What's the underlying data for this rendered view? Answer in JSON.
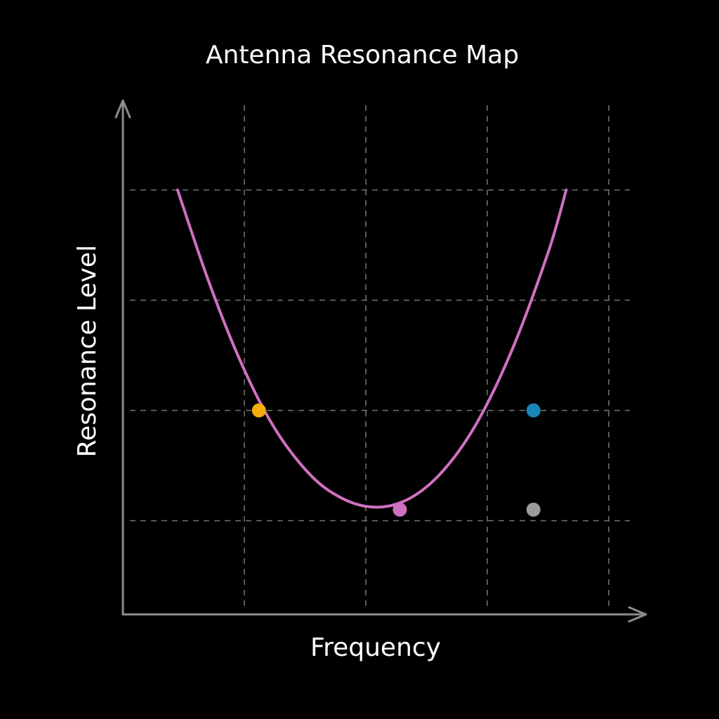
{
  "chart_data": {
    "type": "line",
    "title": "Antenna Resonance Map",
    "xlabel": "Frequency",
    "ylabel": "Resonance Level",
    "xlim": [
      0,
      4.35
    ],
    "ylim": [
      0,
      4.6
    ],
    "x_gridlines": [
      1,
      2,
      3,
      4
    ],
    "y_gridlines": [
      0.85,
      1.85,
      2.85,
      3.85
    ],
    "grid": true,
    "grid_style": "dashed",
    "legend": "none",
    "series": [
      {
        "type": "curve",
        "color": "#d070c0",
        "points": [
          [
            0.45,
            3.85
          ],
          [
            0.7,
            3.04
          ],
          [
            0.95,
            2.34
          ],
          [
            1.2,
            1.78
          ],
          [
            1.45,
            1.38
          ],
          [
            1.7,
            1.12
          ],
          [
            2.0,
            0.98
          ],
          [
            2.3,
            1.02
          ],
          [
            2.6,
            1.26
          ],
          [
            2.9,
            1.71
          ],
          [
            3.2,
            2.39
          ],
          [
            3.5,
            3.28
          ],
          [
            3.65,
            3.85
          ]
        ]
      }
    ],
    "markers": [
      {
        "x": 1.12,
        "y": 1.85,
        "color": "#f2ac0c"
      },
      {
        "x": 2.28,
        "y": 0.95,
        "color": "#d070c0"
      },
      {
        "x": 3.38,
        "y": 1.85,
        "color": "#1a86b8"
      },
      {
        "x": 3.38,
        "y": 0.95,
        "color": "#9b9b9b"
      }
    ]
  }
}
